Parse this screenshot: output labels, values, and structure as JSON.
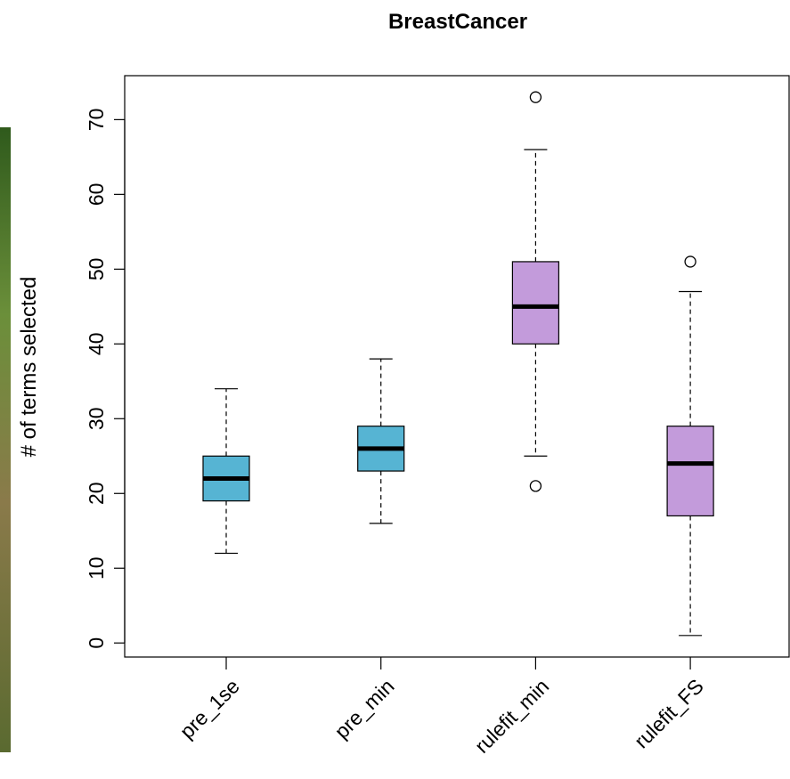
{
  "chart_data": {
    "type": "box",
    "title": "BreastCancer",
    "ylabel": "# of terms selected",
    "categories": [
      "pre_1se",
      "pre_min",
      "rulefit_min",
      "rulefit_FS"
    ],
    "boxes": [
      {
        "min": 12,
        "q1": 19,
        "median": 22,
        "q3": 25,
        "max": 34,
        "outliers": [],
        "color": "#56b4d3"
      },
      {
        "min": 16,
        "q1": 23,
        "median": 26,
        "q3": 29,
        "max": 38,
        "outliers": [],
        "color": "#56b4d3"
      },
      {
        "min": 25,
        "q1": 40,
        "median": 45,
        "q3": 51,
        "max": 66,
        "outliers": [
          73,
          21
        ],
        "color": "#c39bdb"
      },
      {
        "min": 1,
        "q1": 17,
        "median": 24,
        "q3": 29,
        "max": 47,
        "outliers": [
          51
        ],
        "color": "#c39bdb"
      }
    ],
    "ylim": [
      -1.88,
      75.88
    ],
    "yticks": [
      0,
      10,
      20,
      30,
      40,
      50,
      60,
      70
    ]
  }
}
